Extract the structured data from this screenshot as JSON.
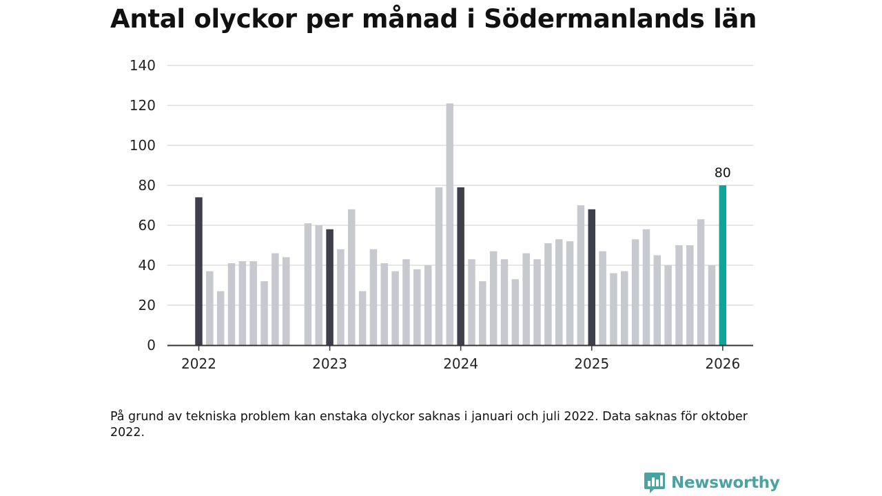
{
  "title": "Antal olyckor per månad i Södermanlands län",
  "footnote": "På grund av tekniska problem kan enstaka olyckor saknas i januari och juli 2022. Data saknas för oktober 2022.",
  "brand": {
    "name": "Newsworthy",
    "icon": "bar-chart-speech-bubble-icon",
    "color": "#4aa3a3"
  },
  "colors": {
    "regular": "#c8c8cf",
    "january": "#3f3f4b",
    "latest": "#10a399",
    "grid": "#dddddd",
    "axis": "#333333",
    "text": "#111111"
  },
  "chart_data": {
    "type": "bar",
    "title": "Antal olyckor per månad i Södermanlands län",
    "xlabel": "",
    "ylabel": "",
    "ylim": [
      0,
      140
    ],
    "yticks": [
      0,
      20,
      40,
      60,
      80,
      100,
      120,
      140
    ],
    "xticks": [
      {
        "label": "2022",
        "index": 0
      },
      {
        "label": "2023",
        "index": 12
      },
      {
        "label": "2024",
        "index": 24
      },
      {
        "label": "2025",
        "index": 36
      },
      {
        "label": "2026",
        "index": 48
      }
    ],
    "categories": [
      "2022-01",
      "2022-02",
      "2022-03",
      "2022-04",
      "2022-05",
      "2022-06",
      "2022-07",
      "2022-08",
      "2022-09",
      "2022-10",
      "2022-11",
      "2022-12",
      "2023-01",
      "2023-02",
      "2023-03",
      "2023-04",
      "2023-05",
      "2023-06",
      "2023-07",
      "2023-08",
      "2023-09",
      "2023-10",
      "2023-11",
      "2023-12",
      "2024-01",
      "2024-02",
      "2024-03",
      "2024-04",
      "2024-05",
      "2024-06",
      "2024-07",
      "2024-08",
      "2024-09",
      "2024-10",
      "2024-11",
      "2024-12",
      "2025-01",
      "2025-02",
      "2025-03",
      "2025-04",
      "2025-05",
      "2025-06",
      "2025-07",
      "2025-08",
      "2025-09",
      "2025-10",
      "2025-11",
      "2025-12",
      "2026-01"
    ],
    "values": [
      74,
      37,
      27,
      41,
      42,
      42,
      32,
      46,
      44,
      null,
      61,
      60,
      58,
      48,
      68,
      27,
      48,
      41,
      37,
      43,
      38,
      40,
      79,
      121,
      79,
      43,
      32,
      47,
      43,
      33,
      46,
      43,
      51,
      53,
      52,
      70,
      68,
      47,
      36,
      37,
      53,
      58,
      45,
      40,
      50,
      50,
      63,
      40,
      80
    ],
    "highlight": {
      "january_indices": [
        0,
        12,
        24,
        36
      ],
      "latest_index": 48
    },
    "data_labels": [
      {
        "index": 48,
        "text": "80"
      }
    ],
    "grid": true,
    "legend": "none"
  }
}
